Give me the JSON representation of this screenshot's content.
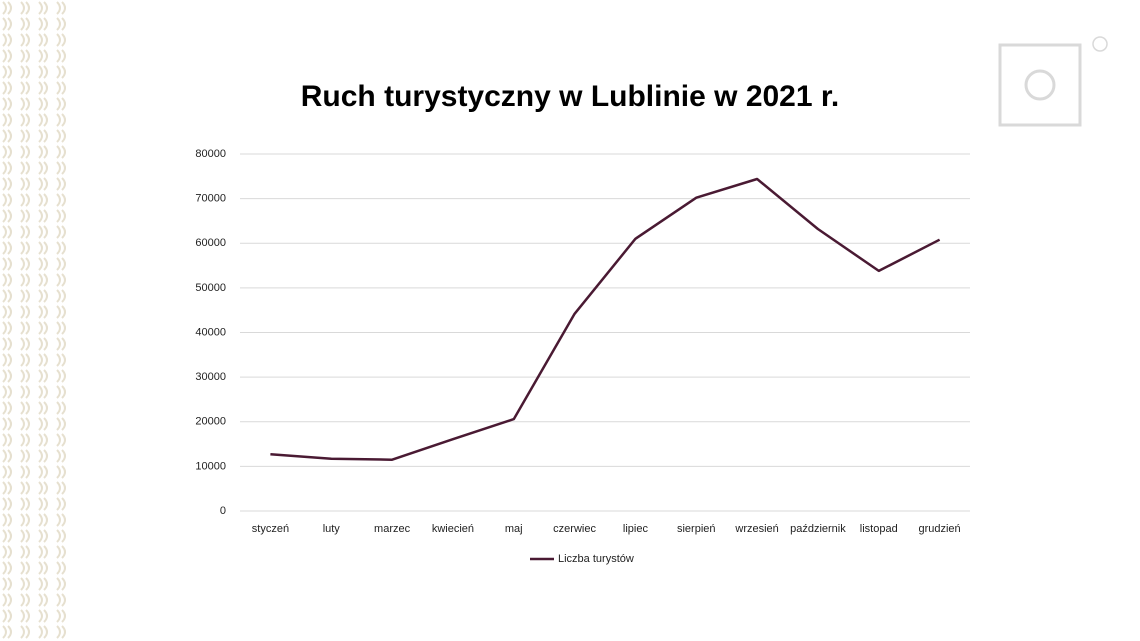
{
  "chart_data": {
    "type": "line",
    "title": "Ruch turystyczny w Lublinie w 2021 r.",
    "categories": [
      "styczeń",
      "luty",
      "marzec",
      "kwiecień",
      "maj",
      "czerwiec",
      "lipiec",
      "sierpień",
      "wrzesień",
      "październik",
      "listopad",
      "grudzień"
    ],
    "series": [
      {
        "name": "Liczba turystów",
        "color": "#4a1a33",
        "values": [
          12700,
          11700,
          11500,
          16100,
          20600,
          44200,
          61000,
          70200,
          74400,
          63200,
          53800,
          60800
        ]
      }
    ],
    "ylim": [
      0,
      80000
    ],
    "yticks": [
      0,
      10000,
      20000,
      30000,
      40000,
      50000,
      60000,
      70000,
      80000
    ],
    "grid": true,
    "legend": "bottom"
  }
}
